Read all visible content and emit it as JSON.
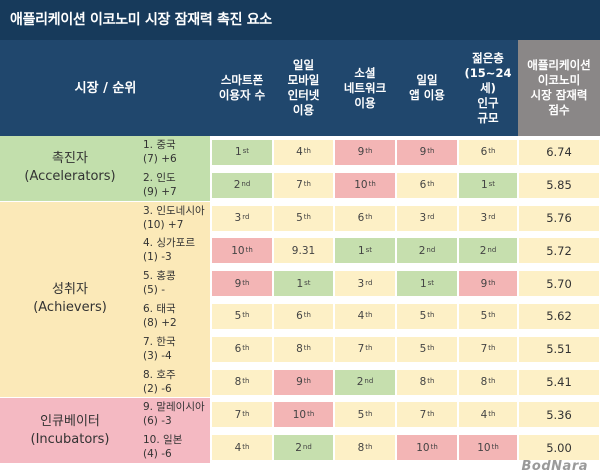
{
  "title": "애플리케이션 이코노미 시장 잠재력 촉진 요소",
  "chart_data": {
    "type": "table",
    "title": "애플리케이션 이코노미 시장 잠재력 촉진 요소",
    "header_rank": "시장 / 순위",
    "columns": [
      "스마트폰\n이용자 수",
      "일일\n모바일\n인터넷\n이용",
      "소셜\n네트워크\n이용",
      "일일\n앱 이용",
      "젊은층\n(15~24세)\n인구\n규모",
      "애플리케이션\n이코노미\n시장 잠재력\n점수"
    ],
    "groups": [
      {
        "label": "촉진자\n(Accelerators)",
        "rows": [
          0,
          1
        ]
      },
      {
        "label": "성취자\n(Achievers)",
        "rows": [
          2,
          3,
          4,
          5,
          6,
          7
        ]
      },
      {
        "label": "인큐베이터\n(Incubators)",
        "rows": [
          8,
          9
        ]
      }
    ],
    "rows": [
      {
        "country": "1. 중국\n(7) +6",
        "cells": [
          [
            "1",
            "st"
          ],
          [
            "4",
            "th"
          ],
          [
            "9",
            "th"
          ],
          [
            "9",
            "th"
          ],
          [
            "6",
            "th"
          ]
        ],
        "colors": [
          "g",
          "y",
          "r",
          "r",
          "y"
        ],
        "score": "6.74"
      },
      {
        "country": "2. 인도\n(9) +7",
        "cells": [
          [
            "2",
            "nd"
          ],
          [
            "7",
            "th"
          ],
          [
            "10",
            "th"
          ],
          [
            "6",
            "th"
          ],
          [
            "1",
            "st"
          ]
        ],
        "colors": [
          "g",
          "y",
          "r",
          "y",
          "g"
        ],
        "score": "5.85"
      },
      {
        "country": "3. 인도네시아\n(10) +7",
        "cells": [
          [
            "3",
            "rd"
          ],
          [
            "5",
            "th"
          ],
          [
            "6",
            "th"
          ],
          [
            "3",
            "rd"
          ],
          [
            "3",
            "rd"
          ]
        ],
        "colors": [
          "y",
          "y",
          "y",
          "y",
          "y"
        ],
        "score": "5.76"
      },
      {
        "country": "4. 싱가포르\n(1) -3",
        "cells": [
          [
            "10",
            "th"
          ],
          [
            "9.31",
            ""
          ],
          [
            "1",
            "st"
          ],
          [
            "2",
            "nd"
          ],
          [
            "2",
            "nd"
          ]
        ],
        "colors": [
          "r",
          "y",
          "g",
          "g",
          "g"
        ],
        "score": "5.72"
      },
      {
        "country": "5. 홍콩\n(5) -",
        "cells": [
          [
            "9",
            "th"
          ],
          [
            "1",
            "st"
          ],
          [
            "3",
            "rd"
          ],
          [
            "1",
            "st"
          ],
          [
            "9",
            "th"
          ]
        ],
        "colors": [
          "r",
          "g",
          "y",
          "g",
          "r"
        ],
        "score": "5.70"
      },
      {
        "country": "6. 태국\n(8) +2",
        "cells": [
          [
            "5",
            "th"
          ],
          [
            "6",
            "th"
          ],
          [
            "4",
            "th"
          ],
          [
            "5",
            "th"
          ],
          [
            "5",
            "th"
          ]
        ],
        "colors": [
          "y",
          "y",
          "y",
          "y",
          "y"
        ],
        "score": "5.62"
      },
      {
        "country": "7. 한국\n(3) -4",
        "cells": [
          [
            "6",
            "th"
          ],
          [
            "8",
            "th"
          ],
          [
            "7",
            "th"
          ],
          [
            "5",
            "th"
          ],
          [
            "7",
            "th"
          ]
        ],
        "colors": [
          "y",
          "y",
          "y",
          "y",
          "y"
        ],
        "score": "5.51"
      },
      {
        "country": "8. 호주\n(2) -6",
        "cells": [
          [
            "8",
            "th"
          ],
          [
            "9",
            "th"
          ],
          [
            "2",
            "nd"
          ],
          [
            "8",
            "th"
          ],
          [
            "8",
            "th"
          ]
        ],
        "colors": [
          "y",
          "r",
          "g",
          "y",
          "y"
        ],
        "score": "5.41"
      },
      {
        "country": "9. 말레이시아\n(6) -3",
        "cells": [
          [
            "7",
            "th"
          ],
          [
            "10",
            "th"
          ],
          [
            "5",
            "th"
          ],
          [
            "7",
            "th"
          ],
          [
            "4",
            "th"
          ]
        ],
        "colors": [
          "y",
          "r",
          "y",
          "y",
          "y"
        ],
        "score": "5.36"
      },
      {
        "country": "10. 일본\n(4) -6",
        "cells": [
          [
            "4",
            "th"
          ],
          [
            "2",
            "nd"
          ],
          [
            "8",
            "th"
          ],
          [
            "10",
            "th"
          ],
          [
            "10",
            "th"
          ]
        ],
        "colors": [
          "y",
          "g",
          "y",
          "r",
          "r"
        ],
        "score": "5.00"
      }
    ]
  },
  "colors": {
    "header_bg": "#20476d",
    "title_bg": "#173a5b",
    "score_header_bg": "#8a8787",
    "green": "#c6dfae",
    "yellow": "#fdf0c6",
    "red": "#f3b5b5",
    "group_green": "#c2dfac",
    "group_yellow": "#fbe9b8",
    "group_red": "#f4b9c2",
    "score_bg": "#fdf0c6"
  },
  "watermark": "BodNara"
}
